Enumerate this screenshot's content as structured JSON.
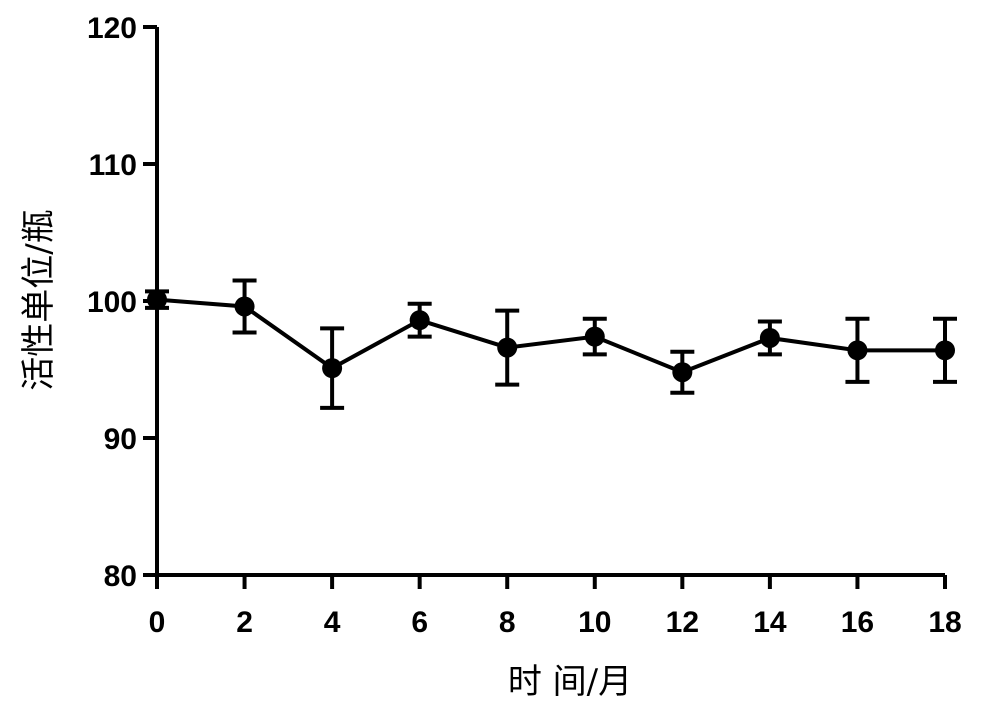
{
  "chart_data": {
    "type": "line",
    "xlabel": "时 间/月",
    "ylabel": "活性单位/瓶",
    "xlim": [
      0,
      18
    ],
    "ylim": [
      80,
      120
    ],
    "x_ticks": [
      "0",
      "2",
      "4",
      "6",
      "8",
      "10",
      "12",
      "14",
      "16",
      "18"
    ],
    "y_ticks": [
      "80",
      "90",
      "100",
      "110",
      "120"
    ],
    "grid": false,
    "legend": "none",
    "series": [
      {
        "x": [
          0,
          2,
          4,
          6,
          8,
          10,
          12,
          14,
          16,
          18
        ],
        "y": [
          100.1,
          99.6,
          95.1,
          98.6,
          96.6,
          97.4,
          94.8,
          97.3,
          96.4,
          96.4
        ],
        "error": [
          0.6,
          1.9,
          2.9,
          1.2,
          2.7,
          1.3,
          1.5,
          1.2,
          2.3,
          2.3
        ]
      }
    ],
    "color": "#000000"
  }
}
